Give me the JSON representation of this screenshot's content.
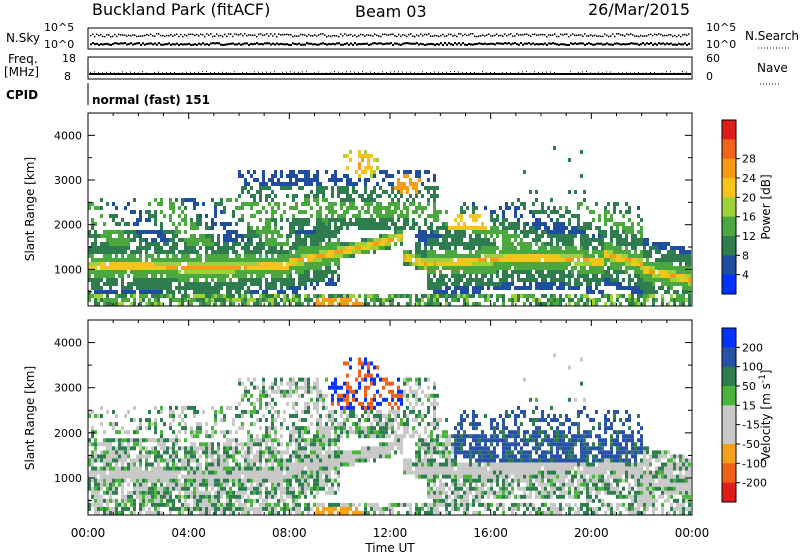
{
  "header": {
    "site": "Buckland Park (fitACF)",
    "beam": "Beam 03",
    "date": "26/Mar/2015"
  },
  "strip_labels": {
    "nsky": "N.Sky",
    "nsky_top": "10^5",
    "nsky_bottom": "10^0",
    "nsearch": "N.Search",
    "nsearch_top": "10^5",
    "nsearch_bottom": "10^0",
    "freq_line1": "Freq.",
    "freq_line2": "[MHz]",
    "freq_top": "18",
    "freq_bottom": "8",
    "nave": "Nave",
    "nave_top": "60",
    "nave_bottom": "0",
    "cpid": "CPID",
    "cpid_value": "normal (fast) 151"
  },
  "colors": {
    "power": [
      "#0033ff",
      "#1f4e9e",
      "#2f7d4f",
      "#4aa83e",
      "#9fd23a",
      "#f6c51c",
      "#f79a14",
      "#f0641a",
      "#e01d1a"
    ],
    "velocity": [
      "#e01d1a",
      "#f05e18",
      "#f5a21a",
      "#c8c8c8",
      "#c8c8c8",
      "#4ab43c",
      "#2f7d4f",
      "#2752a6",
      "#0033ff"
    ]
  },
  "chart_data": [
    {
      "type": "heatmap",
      "title": "",
      "xlabel": "",
      "ylabel": "Slant Range [km]",
      "x_ticks": [
        "00:00",
        "04:00",
        "08:00",
        "12:00",
        "16:00",
        "20:00",
        "00:00"
      ],
      "y_ticks": [
        "1000",
        "2000",
        "3000",
        "4000"
      ],
      "xlim_hours": [
        0,
        24
      ],
      "ylim_km": [
        180,
        4500
      ],
      "colorbar": {
        "label": "Power [dB]",
        "ticks": [
          "4",
          "8",
          "12",
          "16",
          "20",
          "24",
          "28"
        ]
      },
      "features": [
        {
          "name": "main band",
          "start_h": 0,
          "end_h": 24,
          "range_km_start": 1100,
          "range_km_end": 1150,
          "peak_db": 28
        },
        {
          "name": "upper scatter patch",
          "center_h": 10.8,
          "center_km": 3400,
          "peak_db": 28
        }
      ]
    },
    {
      "type": "heatmap",
      "title": "",
      "xlabel": "Time UT",
      "ylabel": "Slant Range [km]",
      "x_ticks": [
        "00:00",
        "04:00",
        "08:00",
        "12:00",
        "16:00",
        "20:00",
        "00:00"
      ],
      "y_ticks": [
        "1000",
        "2000",
        "3000",
        "4000"
      ],
      "xlim_hours": [
        0,
        24
      ],
      "ylim_km": [
        180,
        4500
      ],
      "colorbar": {
        "label": "Velocity [m s^-1]",
        "ticks": [
          "200",
          "100",
          "50",
          "15",
          "-15",
          "-50",
          "-100",
          "-200"
        ]
      }
    }
  ]
}
